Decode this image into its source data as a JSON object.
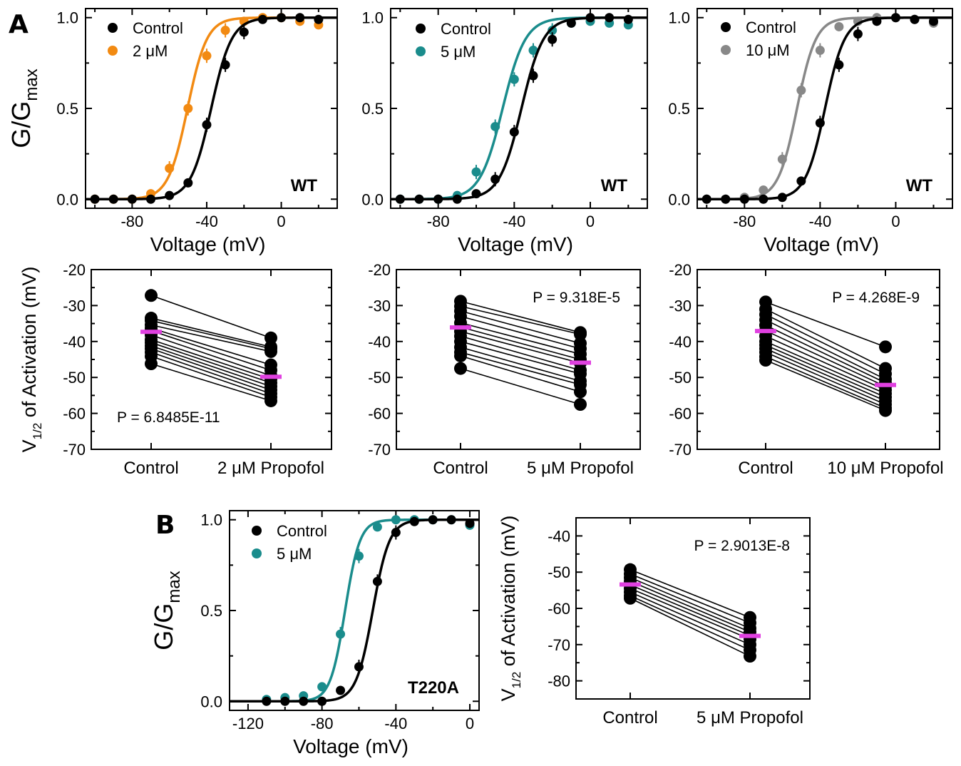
{
  "colors": {
    "control": "#000000",
    "propofol_2uM": "#f28a12",
    "propofol_5uM": "#1a8c8c",
    "propofol_10uM": "#888888",
    "mean_marker": "#e040e0"
  },
  "panel_labels": {
    "A": "A",
    "B": "B"
  },
  "chart_data": [
    {
      "id": "A1",
      "type": "scatter",
      "subtype": "activation-curve",
      "ylabel": "G/G",
      "ylabel_sub": "max",
      "xlabel": "Voltage (mV)",
      "tag": "WT",
      "xlim": [
        -105,
        30
      ],
      "ylim": [
        -0.05,
        1.05
      ],
      "xticks": [
        -80,
        -40,
        0
      ],
      "yticks": [
        0.0,
        0.5,
        1.0
      ],
      "ytick_labels": [
        "0.0",
        "0.5",
        "1.0"
      ],
      "series": [
        {
          "name": "Control",
          "color_key": "control",
          "vhalf": -37.6,
          "k": 5.5,
          "x": [
            -100,
            -90,
            -80,
            -70,
            -60,
            -50,
            -40,
            -30,
            -20,
            -10,
            0,
            10,
            20
          ],
          "y": [
            0.0,
            0.0,
            0.0,
            0.0,
            0.02,
            0.09,
            0.41,
            0.74,
            0.92,
            0.99,
            1.0,
            1.0,
            0.99
          ]
        },
        {
          "name": "2 μM",
          "color_key": "propofol_2uM",
          "vhalf": -50.3,
          "k": 5.2,
          "x": [
            -100,
            -90,
            -80,
            -70,
            -60,
            -50,
            -40,
            -30,
            -20,
            -10,
            0,
            10,
            20
          ],
          "y": [
            0.0,
            0.0,
            0.0,
            0.03,
            0.17,
            0.5,
            0.79,
            0.93,
            0.98,
            1.0,
            1.0,
            0.98,
            0.96
          ]
        }
      ]
    },
    {
      "id": "A2",
      "type": "scatter",
      "subtype": "activation-curve",
      "ylabel": "",
      "ylabel_sub": "",
      "xlabel": "Voltage (mV)",
      "tag": "WT",
      "xlim": [
        -105,
        30
      ],
      "ylim": [
        -0.05,
        1.05
      ],
      "xticks": [
        -80,
        -40,
        0
      ],
      "yticks": [
        0.0,
        0.5,
        1.0
      ],
      "ytick_labels": [
        "0.0",
        "0.5",
        "1.0"
      ],
      "series": [
        {
          "name": "Control",
          "color_key": "control",
          "vhalf": -36.2,
          "k": 5.8,
          "x": [
            -100,
            -90,
            -80,
            -70,
            -60,
            -50,
            -40,
            -30,
            -20,
            -10,
            0,
            10,
            20
          ],
          "y": [
            0.0,
            0.0,
            0.0,
            0.0,
            0.03,
            0.11,
            0.37,
            0.68,
            0.88,
            0.97,
            1.0,
            1.0,
            0.99
          ]
        },
        {
          "name": "5 μM",
          "color_key": "propofol_5uM",
          "vhalf": -46.1,
          "k": 6.0,
          "x": [
            -100,
            -90,
            -80,
            -70,
            -60,
            -50,
            -40,
            -30,
            -20,
            -10,
            0,
            10,
            20
          ],
          "y": [
            0.0,
            0.0,
            0.0,
            0.02,
            0.15,
            0.4,
            0.66,
            0.82,
            0.93,
            0.97,
            0.98,
            0.97,
            0.96
          ]
        }
      ]
    },
    {
      "id": "A3",
      "type": "scatter",
      "subtype": "activation-curve",
      "ylabel": "",
      "ylabel_sub": "",
      "xlabel": "Voltage (mV)",
      "tag": "WT",
      "xlim": [
        -105,
        30
      ],
      "ylim": [
        -0.05,
        1.05
      ],
      "xticks": [
        -80,
        -40,
        0
      ],
      "yticks": [
        0.0,
        0.5,
        1.0
      ],
      "ytick_labels": [
        "0.0",
        "0.5",
        "1.0"
      ],
      "series": [
        {
          "name": "Control",
          "color_key": "control",
          "vhalf": -37.4,
          "k": 5.2,
          "x": [
            -100,
            -90,
            -80,
            -70,
            -60,
            -50,
            -40,
            -30,
            -20,
            -10,
            0,
            10,
            20
          ],
          "y": [
            0.0,
            0.0,
            0.0,
            0.0,
            0.01,
            0.1,
            0.42,
            0.74,
            0.91,
            0.98,
            1.0,
            0.99,
            0.98
          ]
        },
        {
          "name": "10 μM",
          "color_key": "propofol_10uM",
          "vhalf": -52.2,
          "k": 5.0,
          "x": [
            -100,
            -90,
            -80,
            -70,
            -60,
            -50,
            -40,
            -30,
            -20,
            -10,
            0,
            10,
            20
          ],
          "y": [
            0.0,
            0.0,
            0.01,
            0.05,
            0.22,
            0.6,
            0.82,
            0.95,
            0.98,
            1.0,
            1.0,
            0.99,
            0.97
          ]
        }
      ]
    },
    {
      "id": "A4",
      "type": "scatter",
      "subtype": "paired-dot",
      "ylabel": "V",
      "ylabel_sub": "1/2",
      "ylabel_rest": " of Activation (mV)",
      "categories": [
        "Control",
        "2 μM Propofol"
      ],
      "ylim": [
        -70,
        -20
      ],
      "yticks": [
        -70,
        -60,
        -50,
        -40,
        -30,
        -20
      ],
      "annotation": "P = 6.8485E-11",
      "annotation_pos": "bottom-left",
      "means": [
        -37.3,
        -49.8
      ],
      "control": [
        -27.2,
        -33.5,
        -34.2,
        -35.4,
        -36.3,
        -37.0,
        -38.2,
        -39.5,
        -40.3,
        -41.2,
        -42.0,
        -43.0,
        -44.1,
        -46.2
      ],
      "propofol": [
        -39.0,
        -41.5,
        -42.0,
        -42.8,
        -46.5,
        -48.0,
        -49.5,
        -50.5,
        -51.5,
        -52.5,
        -53.5,
        -54.5,
        -55.5,
        -56.5
      ]
    },
    {
      "id": "A5",
      "type": "scatter",
      "subtype": "paired-dot",
      "ylabel": "",
      "ylabel_sub": "",
      "ylabel_rest": "",
      "categories": [
        "Control",
        "5 μM Propofol"
      ],
      "ylim": [
        -70,
        -20
      ],
      "yticks": [
        -70,
        -60,
        -50,
        -40,
        -30,
        -20
      ],
      "annotation": "P = 9.318E-5",
      "annotation_pos": "top-right",
      "means": [
        -36.1,
        -45.9
      ],
      "control": [
        -28.8,
        -30.2,
        -31.5,
        -33.0,
        -34.8,
        -36.0,
        -37.2,
        -38.5,
        -40.0,
        -41.6,
        -43.0,
        -44.0,
        -47.5
      ],
      "propofol": [
        -37.5,
        -38.0,
        -40.5,
        -42.0,
        -43.5,
        -45.0,
        -46.0,
        -48.0,
        -49.0,
        -51.0,
        -52.0,
        -54.0,
        -57.5
      ]
    },
    {
      "id": "A6",
      "type": "scatter",
      "subtype": "paired-dot",
      "ylabel": "",
      "ylabel_sub": "",
      "ylabel_rest": "",
      "categories": [
        "Control",
        "10 μM Propofol"
      ],
      "ylim": [
        -70,
        -20
      ],
      "yticks": [
        -70,
        -60,
        -50,
        -40,
        -30,
        -20
      ],
      "annotation": "P = 4.268E-9",
      "annotation_pos": "top-right",
      "means": [
        -37.1,
        -52.1
      ],
      "control": [
        -29.0,
        -31.0,
        -32.5,
        -34.0,
        -35.5,
        -37.0,
        -38.5,
        -40.0,
        -41.0,
        -42.0,
        -43.0,
        -44.2,
        -45.2
      ],
      "propofol": [
        -41.5,
        -47.5,
        -49.0,
        -50.5,
        -51.5,
        -52.5,
        -53.5,
        -54.5,
        -55.5,
        -56.5,
        -57.5,
        -58.5,
        -59.2
      ]
    },
    {
      "id": "B1",
      "type": "scatter",
      "subtype": "activation-curve",
      "ylabel": "G/G",
      "ylabel_sub": "max",
      "xlabel": "Voltage (mV)",
      "tag": "T220A",
      "xlim": [
        -130,
        5
      ],
      "ylim": [
        -0.05,
        1.05
      ],
      "xticks": [
        -120,
        -80,
        -40,
        0
      ],
      "yticks": [
        0.0,
        0.5,
        1.0
      ],
      "ytick_labels": [
        "0.0",
        "0.5",
        "1.0"
      ],
      "series": [
        {
          "name": "Control",
          "color_key": "control",
          "vhalf": -52.5,
          "k": 4.5,
          "x": [
            -110,
            -100,
            -90,
            -80,
            -70,
            -60,
            -50,
            -40,
            -30,
            -20,
            -10,
            0
          ],
          "y": [
            0.0,
            0.0,
            0.0,
            0.0,
            0.06,
            0.19,
            0.66,
            0.93,
            0.99,
            1.0,
            1.0,
            0.98
          ]
        },
        {
          "name": "5 μM",
          "color_key": "propofol_5uM",
          "vhalf": -67.5,
          "k": 4.0,
          "x": [
            -110,
            -100,
            -90,
            -80,
            -70,
            -60,
            -50,
            -40,
            -30,
            -20,
            -10,
            0
          ],
          "y": [
            0.01,
            0.02,
            0.03,
            0.08,
            0.37,
            0.8,
            0.96,
            1.0,
            1.0,
            1.0,
            1.0,
            0.97
          ]
        }
      ]
    },
    {
      "id": "B2",
      "type": "scatter",
      "subtype": "paired-dot",
      "ylabel": "V",
      "ylabel_sub": "1/2",
      "ylabel_rest": " of Activation (mV)",
      "categories": [
        "Control",
        "5 μM Propofol"
      ],
      "ylim": [
        -85,
        -35
      ],
      "yticks": [
        -80,
        -70,
        -60,
        -50,
        -40
      ],
      "annotation": "P = 2.9013E-8",
      "annotation_pos": "top-right",
      "means": [
        -53.4,
        -67.6
      ],
      "control": [
        -49.3,
        -50.5,
        -51.5,
        -52.5,
        -53.5,
        -54.5,
        -55.5,
        -56.5,
        -57.2
      ],
      "propofol": [
        -62.5,
        -64.0,
        -65.5,
        -66.5,
        -67.5,
        -68.5,
        -70.0,
        -71.5,
        -73.2
      ]
    }
  ]
}
